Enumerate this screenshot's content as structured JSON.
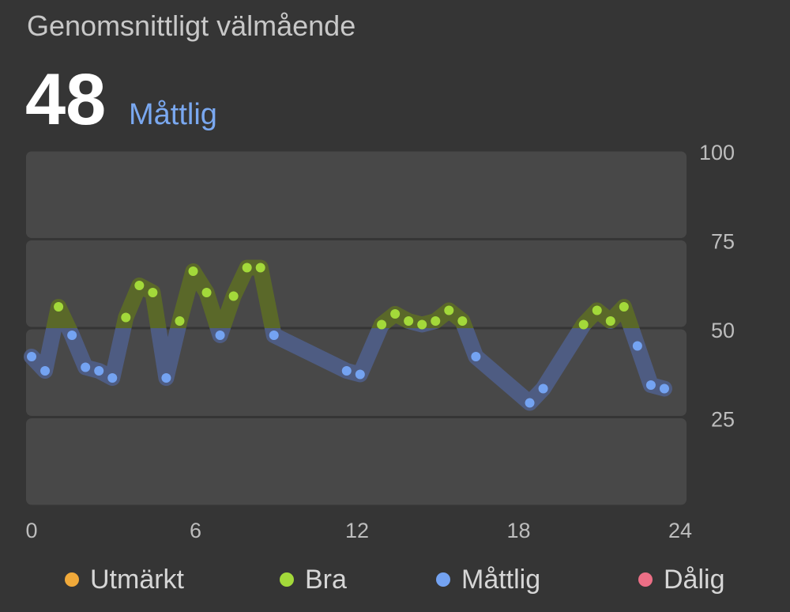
{
  "header": {
    "title": "Genomsnittligt välmående",
    "score_value": "48",
    "score_label": "Måttlig"
  },
  "colors": {
    "background": "#353535",
    "band": "#484848",
    "green_band": "#5c6a28",
    "blue_band": "#4f5e86",
    "green_dot": "#a3d93a",
    "blue_dot": "#74a3f2",
    "orange_dot": "#f0a93a",
    "red_dot": "#ec6f86",
    "score_label": "#7aa8f0"
  },
  "legend": [
    {
      "label": "Utmärkt",
      "color": "#f0a93a"
    },
    {
      "label": "Bra",
      "color": "#a3d93a"
    },
    {
      "label": "Måttlig",
      "color": "#74a3f2"
    },
    {
      "label": "Dålig",
      "color": "#ec6f86"
    }
  ],
  "chart_data": {
    "type": "line",
    "title": "",
    "xlabel": "",
    "ylabel": "",
    "xlim": [
      0,
      24
    ],
    "ylim": [
      0,
      100
    ],
    "x_ticks": [
      0,
      6,
      12,
      18,
      24
    ],
    "y_ticks": [
      25,
      50,
      75,
      100
    ],
    "y_tick_labels": [
      "25",
      "50",
      "75",
      "100"
    ],
    "x_tick_labels": [
      "0",
      "6",
      "12",
      "18",
      "24"
    ],
    "grid": "horizontal bands at 25-point intervals",
    "threshold_between_categories": 50,
    "series": [
      {
        "x": [
          0.0,
          0.5,
          1.0,
          1.5,
          2.0,
          2.5,
          3.0,
          3.5,
          4.0,
          4.5,
          5.0,
          5.5,
          6.0,
          6.5,
          7.0,
          7.5,
          8.0,
          8.5,
          9.0,
          11.7,
          12.2,
          13.0,
          13.5,
          14.0,
          14.5,
          15.0,
          15.5,
          16.0,
          16.5,
          18.5,
          19.0,
          20.5,
          21.0,
          21.5,
          22.0,
          22.5,
          23.0,
          23.5
        ],
        "values": [
          42,
          38,
          56,
          48,
          39,
          38,
          36,
          53,
          62,
          60,
          36,
          52,
          66,
          60,
          48,
          59,
          67,
          67,
          48,
          38,
          37,
          51,
          54,
          52,
          51,
          52,
          55,
          52,
          42,
          29,
          33,
          51,
          55,
          52,
          56,
          45,
          34,
          33
        ]
      }
    ]
  }
}
